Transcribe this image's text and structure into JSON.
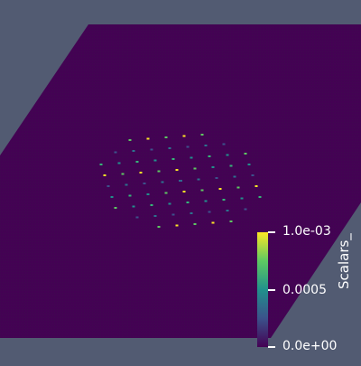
{
  "colors": {
    "background": "#525b72",
    "field": "#440154",
    "viridis": [
      "#440154",
      "#3b528b",
      "#21918c",
      "#5ec962",
      "#fde725"
    ]
  },
  "colorbar": {
    "title": "Scalars_",
    "labels": {
      "max": "1.0e-03",
      "mid": "0.0005",
      "min": "0.0e+00"
    }
  }
}
